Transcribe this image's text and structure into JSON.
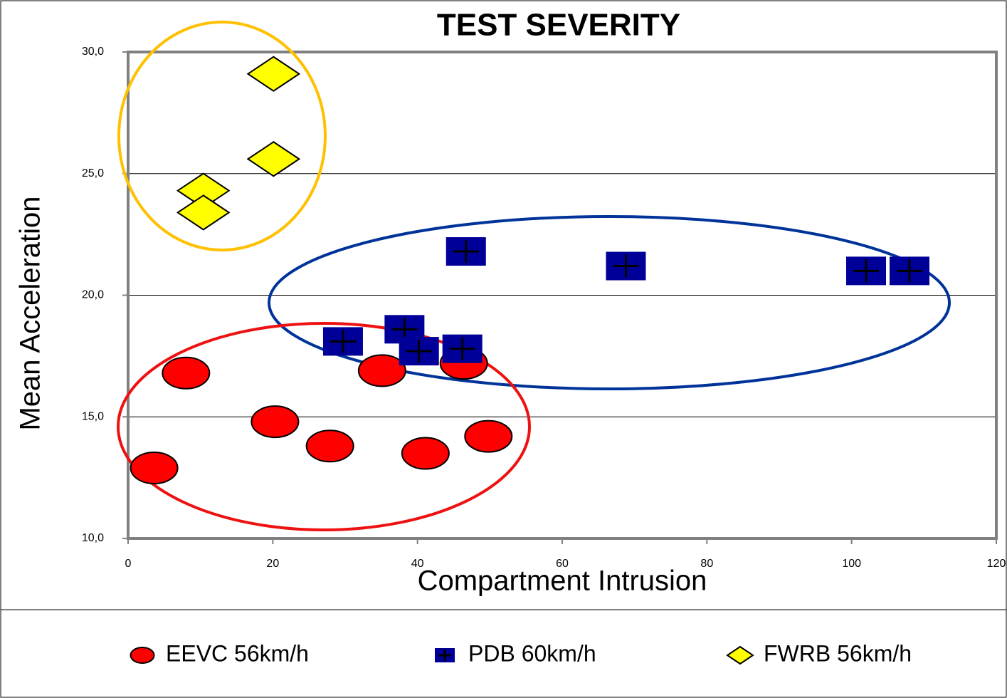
{
  "chart_data": {
    "type": "scatter",
    "title": "TEST SEVERITY",
    "x_label": "Compartment Intrusion",
    "y_label": "Mean Acceleration",
    "xlim": [
      0,
      120
    ],
    "xticks": [
      0,
      20,
      40,
      60,
      80,
      100,
      120
    ],
    "ylim": [
      10,
      30
    ],
    "yticks": [
      {
        "value": 10,
        "label": "10,0"
      },
      {
        "value": 15,
        "label": "15,0"
      },
      {
        "value": 20,
        "label": "20,0"
      },
      {
        "value": 25,
        "label": "25,0"
      },
      {
        "value": 30,
        "label": "30,0"
      }
    ],
    "grid": true,
    "legend": "bottom",
    "series": [
      {
        "name": "EEVC 56km/h",
        "color": "#ff0000",
        "marker": "circle",
        "x": [
          3.6,
          8.0,
          20.3,
          27.9,
          35.1,
          41.1,
          46.4,
          49.8
        ],
        "values": [
          12.9,
          16.8,
          14.8,
          13.8,
          16.9,
          13.5,
          17.2,
          14.2
        ]
      },
      {
        "name": "PDB 60km/h",
        "color": "#000099",
        "marker": "square-plus",
        "x": [
          46.7,
          68.8,
          29.7,
          38.2,
          40.2,
          46.2,
          102.0,
          108.0
        ],
        "values": [
          21.8,
          21.2,
          18.1,
          18.6,
          17.7,
          17.8,
          21.0,
          21.0
        ]
      },
      {
        "name": "FWRB 56km/h",
        "color": "#ffff00",
        "marker": "diamond",
        "x": [
          20.1,
          20.1,
          10.4,
          10.4
        ],
        "values": [
          29.1,
          25.6,
          24.3,
          23.4
        ]
      }
    ]
  }
}
